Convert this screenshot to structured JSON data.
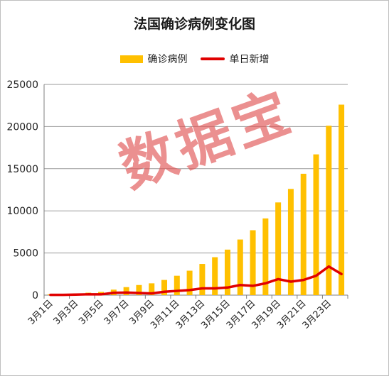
{
  "chart_data": {
    "type": "bar+line",
    "title": "法国确诊病例变化图",
    "xlabel": "",
    "ylabel": "",
    "ylim": [
      0,
      25000
    ],
    "yticks": [
      0,
      5000,
      10000,
      15000,
      20000,
      25000
    ],
    "grid": true,
    "legend_position": "top",
    "categories": [
      "3月1日",
      "3月2日",
      "3月3日",
      "3月4日",
      "3月5日",
      "3月6日",
      "3月7日",
      "3月8日",
      "3月9日",
      "3月10日",
      "3月11日",
      "3月12日",
      "3月13日",
      "3月14日",
      "3月15日",
      "3月16日",
      "3月17日",
      "3月18日",
      "3月19日",
      "3月20日",
      "3月21日",
      "3月22日",
      "3月23日",
      "3月24日"
    ],
    "tick_labels": [
      "3月1日",
      "3月3日",
      "3月5日",
      "3月7日",
      "3月9日",
      "3月11日",
      "3月13日",
      "3月15日",
      "3月17日",
      "3月19日",
      "3月21日",
      "3月23日"
    ],
    "series": [
      {
        "name": "确诊病例",
        "type": "bar",
        "color": "#FFC000",
        "values": [
          100,
          130,
          190,
          290,
          380,
          650,
          950,
          1200,
          1400,
          1800,
          2300,
          2900,
          3700,
          4500,
          5400,
          6600,
          7700,
          9100,
          11000,
          12600,
          14400,
          16700,
          20100,
          22600
        ]
      },
      {
        "name": "单日新增",
        "type": "line",
        "color": "#E00000",
        "values": [
          30,
          30,
          60,
          100,
          90,
          270,
          300,
          250,
          200,
          400,
          500,
          600,
          800,
          800,
          900,
          1200,
          1100,
          1400,
          1900,
          1600,
          1800,
          2300,
          3400,
          2500
        ]
      }
    ]
  },
  "watermark": "数据宝"
}
